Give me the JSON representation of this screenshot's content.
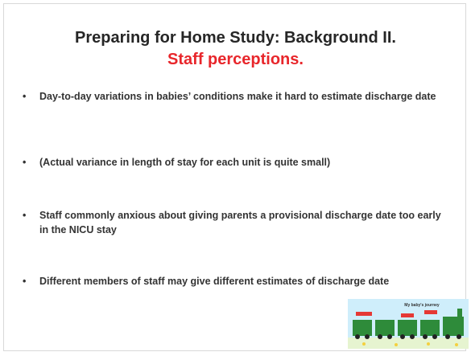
{
  "slide": {
    "title": "Preparing for Home Study: Background II.",
    "subtitle": "Staff perceptions.",
    "bullets": [
      "Day-to-day variations in babies’ conditions make it hard to estimate discharge date",
      "(Actual variance in length of stay for each unit is quite small)",
      "Staff commonly anxious about giving parents a provisional discharge date too early in the NICU stay",
      "Different members of staff may give different estimates of discharge date"
    ],
    "illustration_label": "My baby's journey"
  }
}
